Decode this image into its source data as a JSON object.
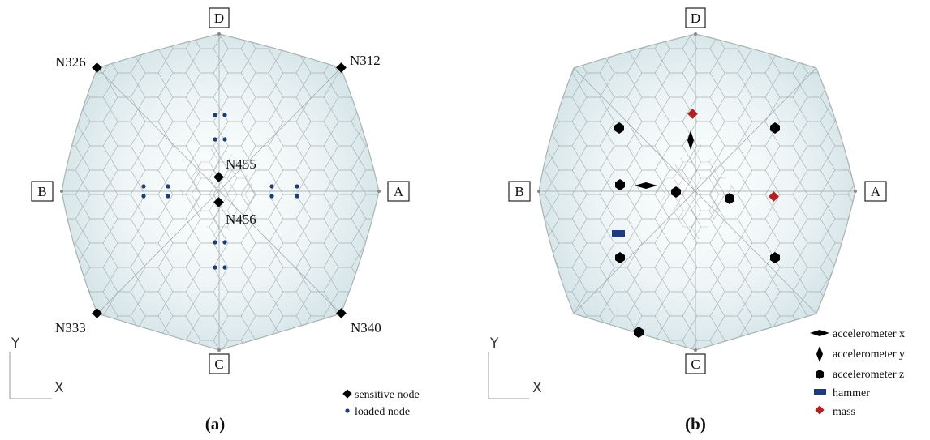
{
  "panel_a": {
    "caption": "(a)",
    "directions": {
      "top": "D",
      "bottom": "C",
      "left": "B",
      "right": "A"
    },
    "nodes": {
      "n326": "N326",
      "n312": "N312",
      "n333": "N333",
      "n340": "N340",
      "n455": "N455",
      "n456": "N456"
    },
    "axes": {
      "y": "Y",
      "x": "X"
    },
    "legend": [
      {
        "label": "sensitive node",
        "symbol": "diamond",
        "color": "#000000"
      },
      {
        "label": "loaded node",
        "symbol": "dot",
        "color": "#1f3b7a"
      }
    ]
  },
  "panel_b": {
    "caption": "(b)",
    "directions": {
      "top": "D",
      "bottom": "C",
      "left": "B",
      "right": "A"
    },
    "axes": {
      "y": "Y",
      "x": "X"
    },
    "legend": [
      {
        "label": "accelerometer x",
        "symbol": "h-rhombus",
        "color": "#000000"
      },
      {
        "label": "accelerometer y",
        "symbol": "v-rhombus",
        "color": "#000000"
      },
      {
        "label": "accelerometer z",
        "symbol": "hexagon",
        "color": "#000000"
      },
      {
        "label": "hammer",
        "symbol": "rect",
        "color": "#1f3b7a"
      },
      {
        "label": "mass",
        "symbol": "diamond",
        "color": "#b22222"
      }
    ]
  },
  "colors": {
    "plate_center": "#ffffff",
    "plate_edge": "#d3e3e6",
    "mesh": "#9aa5a8",
    "loaded": "#1f3b7a",
    "mass": "#b22222",
    "hammer": "#1f3b7a"
  }
}
